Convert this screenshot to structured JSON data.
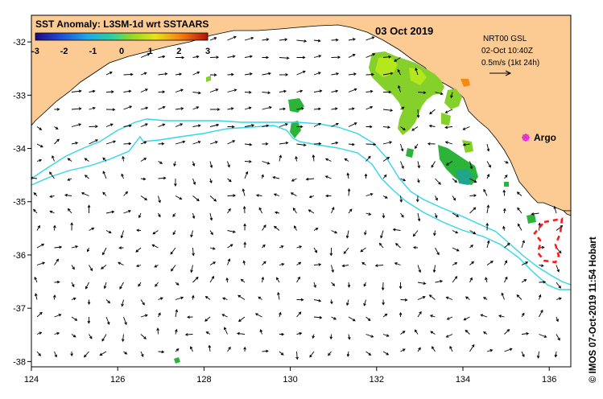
{
  "header": {
    "title": "SST Anomaly: L3SM-1d wrt SSTAARS",
    "date": "03 Oct 2019"
  },
  "colorbar": {
    "ticks": [
      "-3",
      "-2",
      "-1",
      "0",
      "1",
      "2",
      "3"
    ],
    "min": -3,
    "max": 3
  },
  "current_info": {
    "line1": "NRT00 GSL",
    "line2": "02-Oct 10:40Z",
    "line3": "0.5m/s (1kt 24h)"
  },
  "argo": {
    "label": "Argo",
    "color": "#e020e0"
  },
  "credit": "© IMOS 07-Oct-2019 11:54 Hobart",
  "axes": {
    "x_ticks": [
      "124",
      "126",
      "128",
      "130",
      "132",
      "134",
      "136"
    ],
    "y_ticks": [
      "-32",
      "-33",
      "-34",
      "-35",
      "-36",
      "-37",
      "-38"
    ],
    "lon_range": [
      124,
      136.5
    ],
    "lat_range": [
      -38.1,
      -31.5
    ]
  },
  "colors": {
    "land": "#fccb94",
    "contour": "#33d6e6",
    "ocean": "#ffffff",
    "anomaly_main": "#86d02c",
    "anomaly_light": "#b4e81c",
    "anomaly_green": "#2cb33a",
    "anomaly_teal": "#1fa58a",
    "anomaly_orange": "#f58a10",
    "red_dash": "#ff1a1a"
  }
}
